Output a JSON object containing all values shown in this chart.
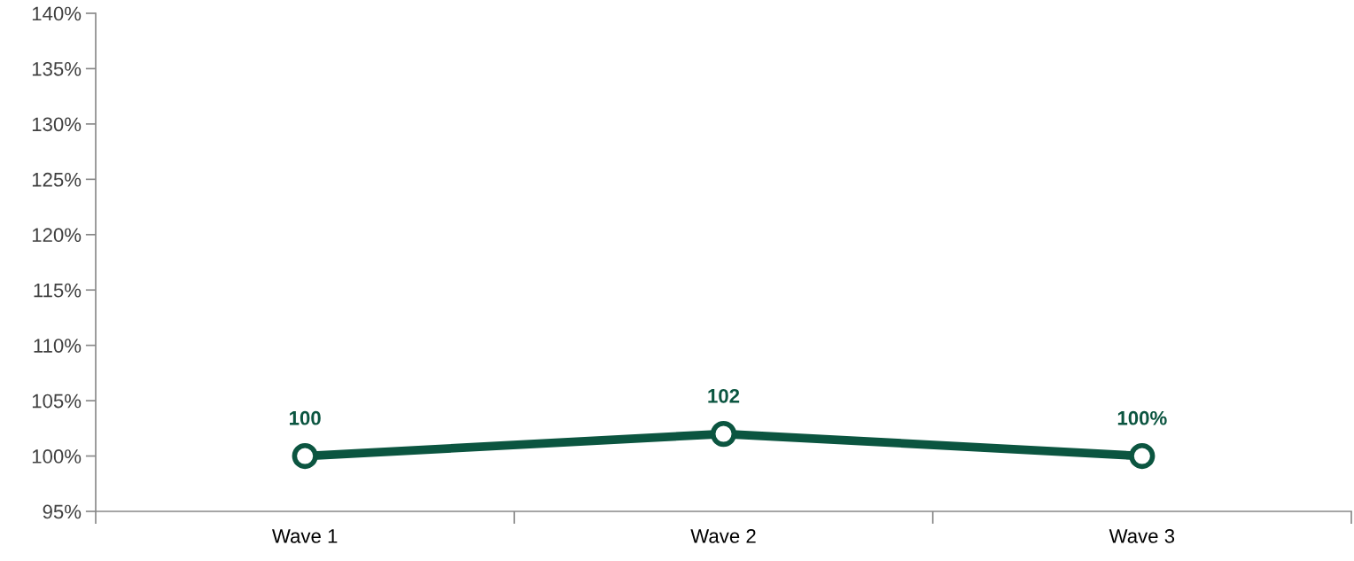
{
  "chart_data": {
    "type": "line",
    "categories": [
      "Wave 1",
      "Wave 2",
      "Wave 3"
    ],
    "series": [
      {
        "color": "#0b5540",
        "values": [
          100,
          102,
          100
        ],
        "value_labels": [
          "100",
          "102",
          "100%"
        ]
      }
    ],
    "ylim": [
      95,
      140
    ],
    "yticks": [
      {
        "value": 95,
        "label": "95%"
      },
      {
        "value": 100,
        "label": "100%"
      },
      {
        "value": 105,
        "label": "105%"
      },
      {
        "value": 110,
        "label": "110%"
      },
      {
        "value": 115,
        "label": "115%"
      },
      {
        "value": 120,
        "label": "120%"
      },
      {
        "value": 125,
        "label": "125%"
      },
      {
        "value": 130,
        "label": "130%"
      },
      {
        "value": 135,
        "label": "135%"
      },
      {
        "value": 140,
        "label": "140%"
      }
    ],
    "grid": false,
    "legend": false,
    "marker": "circle",
    "line_style": "solid"
  }
}
